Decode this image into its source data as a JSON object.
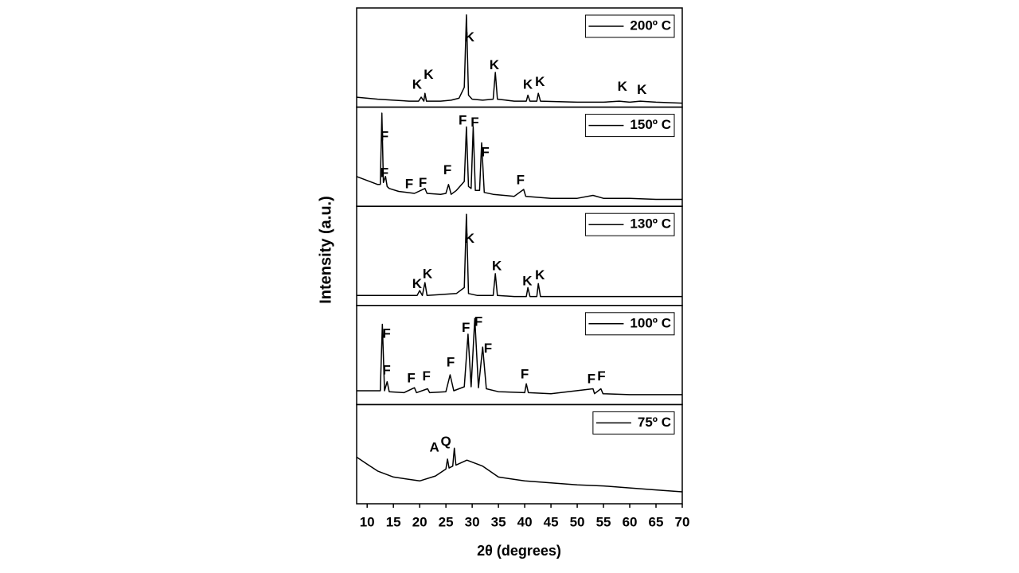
{
  "chart_data": {
    "type": "line",
    "x_label": "2θ (degrees)",
    "y_label": "Intensity (a.u.)",
    "xlim": [
      8,
      70
    ],
    "xticks": [
      10,
      15,
      20,
      25,
      30,
      35,
      40,
      45,
      50,
      55,
      60,
      65,
      70
    ],
    "panels": [
      {
        "series": [
          {
            "name": "200º C",
            "color": "#000000",
            "values": [
              10,
              9,
              8,
              7,
              6,
              6,
              10,
              6,
              14,
              6,
              6,
              7,
              9,
              20,
              93,
              12,
              8,
              7,
              8,
              35,
              8,
              6,
              6,
              12,
              6,
              6,
              14,
              6,
              5,
              5,
              6,
              5,
              6,
              5,
              4
            ]
          }
        ],
        "x": [
          8,
          10,
          12,
          15,
          18,
          19.8,
          20.3,
          20.8,
          21,
          21.3,
          24,
          26,
          27.5,
          28.5,
          28.9,
          29.3,
          30,
          32,
          34,
          34.4,
          34.8,
          38,
          40.3,
          40.6,
          41,
          42.3,
          42.6,
          43,
          50,
          55,
          58,
          60,
          62,
          65,
          70
        ],
        "ylim": [
          0,
          100
        ],
        "annotations": [
          {
            "text": "K",
            "x": 19.5,
            "y": 22
          },
          {
            "text": "K",
            "x": 21.7,
            "y": 32
          },
          {
            "text": "K",
            "x": 29.5,
            "y": 70
          },
          {
            "text": "K",
            "x": 34.2,
            "y": 42
          },
          {
            "text": "K",
            "x": 40.6,
            "y": 22
          },
          {
            "text": "K",
            "x": 42.9,
            "y": 25
          },
          {
            "text": "K",
            "x": 58.6,
            "y": 20
          },
          {
            "text": "K",
            "x": 62.3,
            "y": 17
          }
        ]
      },
      {
        "series": [
          {
            "name": "150º C",
            "color": "#000000",
            "values": [
              30,
              26,
              22,
              22,
              94,
              24,
              30,
              20,
              18,
              15,
              13,
              18,
              13,
              12,
              13,
              22,
              12,
              16,
              25,
              80,
              20,
              18,
              80,
              16,
              16,
              64,
              14,
              12,
              10,
              17,
              10,
              8,
              8,
              11,
              8,
              8,
              7,
              7
            ]
          }
        ],
        "x": [
          8,
          10,
          12,
          12.5,
          12.8,
          13.1,
          13.5,
          13.8,
          14.2,
          16,
          19,
          21,
          21.4,
          24,
          25,
          25.5,
          26,
          27,
          28.5,
          28.9,
          29.3,
          29.8,
          30.2,
          30.6,
          31.4,
          31.8,
          32.3,
          34,
          38,
          39.8,
          40.2,
          45,
          50,
          53,
          55,
          60,
          65,
          70
        ],
        "ylim": [
          0,
          100
        ],
        "annotations": [
          {
            "text": "F",
            "x": 13.3,
            "y": 70
          },
          {
            "text": "F",
            "x": 13.3,
            "y": 33
          },
          {
            "text": "F",
            "x": 18.0,
            "y": 22
          },
          {
            "text": "F",
            "x": 20.6,
            "y": 23
          },
          {
            "text": "F",
            "x": 25.3,
            "y": 36
          },
          {
            "text": "F",
            "x": 28.2,
            "y": 86
          },
          {
            "text": "F",
            "x": 30.5,
            "y": 84
          },
          {
            "text": "F",
            "x": 32.5,
            "y": 54
          },
          {
            "text": "F",
            "x": 39.2,
            "y": 26
          }
        ]
      },
      {
        "series": [
          {
            "name": "130º C",
            "color": "#000000",
            "values": [
              10,
              10,
              10,
              10,
              15,
              10,
              23,
              10,
              11,
              12,
              18,
              92,
              12,
              10,
              10,
              32,
              10,
              9,
              9,
              18,
              9,
              9,
              22,
              9,
              9,
              9,
              9
            ]
          }
        ],
        "x": [
          8,
          12,
          16,
          19.5,
          20,
          20.5,
          21,
          21.4,
          24,
          27,
          28.5,
          28.9,
          29.3,
          31,
          34,
          34.4,
          34.8,
          38,
          40.3,
          40.6,
          41,
          42.3,
          42.6,
          43,
          50,
          60,
          70
        ],
        "ylim": [
          0,
          100
        ],
        "annotations": [
          {
            "text": "K",
            "x": 19.5,
            "y": 21
          },
          {
            "text": "K",
            "x": 21.5,
            "y": 31
          },
          {
            "text": "K",
            "x": 29.5,
            "y": 67
          },
          {
            "text": "K",
            "x": 34.7,
            "y": 39
          },
          {
            "text": "K",
            "x": 40.5,
            "y": 24
          },
          {
            "text": "K",
            "x": 42.9,
            "y": 30
          }
        ]
      },
      {
        "series": [
          {
            "name": "100º C",
            "color": "#000000",
            "values": [
              14,
              14,
              81,
              14,
              23,
              13,
              12,
              17,
              12,
              16,
              12,
              13,
              30,
              14,
              18,
              71,
              18,
              87,
              17,
              58,
              16,
              13,
              12,
              21,
              12,
              11,
              16,
              11,
              16,
              11,
              10,
              10
            ]
          }
        ],
        "x": [
          8,
          12.5,
          12.9,
          13.3,
          13.8,
          14.2,
          17,
          19,
          19.4,
          21.5,
          21.9,
          25,
          25.8,
          26.5,
          28.5,
          29.2,
          29.8,
          30.5,
          31.2,
          32,
          32.7,
          35,
          40,
          40.3,
          40.7,
          45,
          53,
          53.3,
          54.5,
          54.9,
          60,
          70
        ],
        "ylim": [
          0,
          100
        ],
        "annotations": [
          {
            "text": "F",
            "x": 13.7,
            "y": 71
          },
          {
            "text": "F",
            "x": 13.7,
            "y": 34
          },
          {
            "text": "F",
            "x": 18.4,
            "y": 26
          },
          {
            "text": "F",
            "x": 21.3,
            "y": 28
          },
          {
            "text": "F",
            "x": 25.9,
            "y": 42
          },
          {
            "text": "F",
            "x": 28.8,
            "y": 77
          },
          {
            "text": "F",
            "x": 31.2,
            "y": 83
          },
          {
            "text": "F",
            "x": 33.0,
            "y": 56
          },
          {
            "text": "F",
            "x": 40.0,
            "y": 30
          },
          {
            "text": "F",
            "x": 52.7,
            "y": 25
          },
          {
            "text": "F",
            "x": 54.6,
            "y": 28
          }
        ]
      },
      {
        "series": [
          {
            "name": "75º C",
            "color": "#000000",
            "values": [
              47,
              40,
              33,
              27,
              23,
              28,
              35,
              45,
              36,
              38,
              56,
              39,
              44,
              38,
              27,
              23,
              21,
              19,
              18,
              16,
              14,
              12
            ]
          }
        ],
        "x": [
          8,
          10,
          12,
          15,
          20,
          23,
          25,
          25.3,
          25.6,
          26.3,
          26.6,
          26.9,
          29,
          32,
          35,
          40,
          45,
          50,
          55,
          60,
          65,
          70
        ],
        "ylim": [
          0,
          100
        ],
        "annotations": [
          {
            "text": "A",
            "x": 22.8,
            "y": 56
          },
          {
            "text": "Q",
            "x": 25.0,
            "y": 62
          }
        ]
      }
    ]
  }
}
